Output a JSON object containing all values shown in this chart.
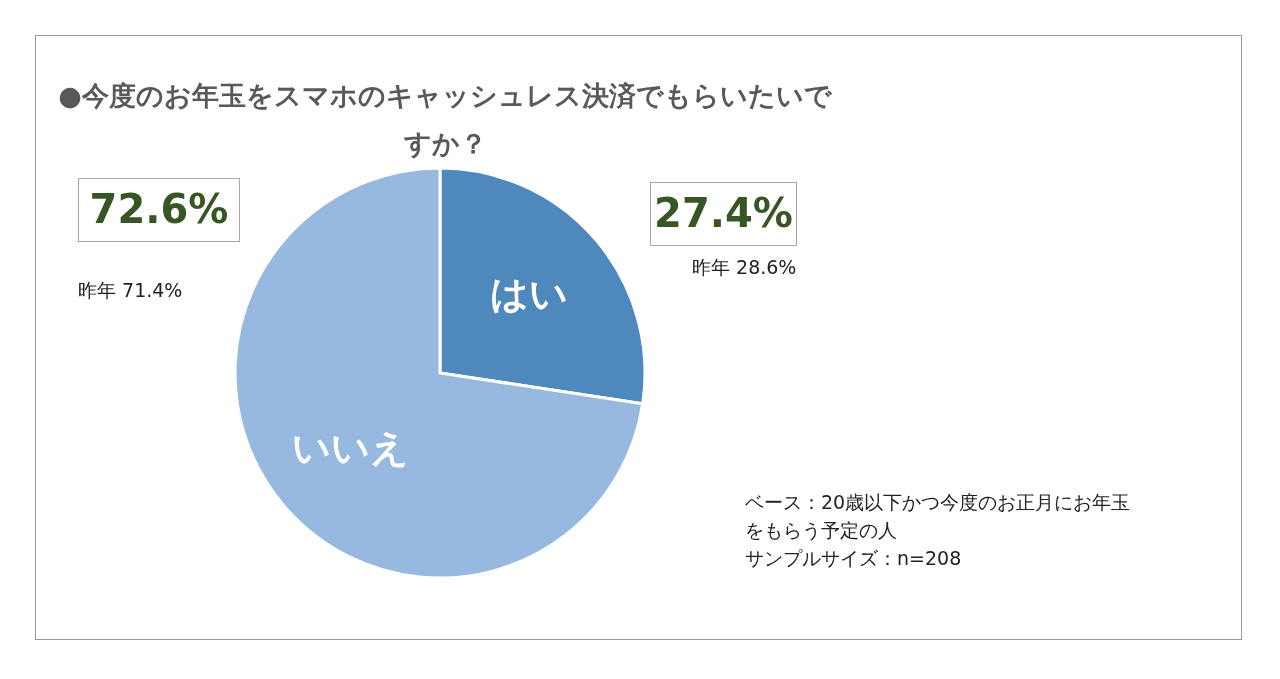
{
  "chart_data": {
    "type": "pie",
    "title": "●今度のお年玉をスマホのキャッシュレス決済でもらいたいですか？",
    "categories": [
      "はい",
      "いいえ"
    ],
    "values": [
      27.4,
      72.6
    ],
    "colors": [
      "#4f88bd",
      "#98b9df"
    ],
    "value_labels": [
      "27.4%",
      "72.6%"
    ],
    "annotations": [
      "昨年 28.6%",
      "昨年 71.4%",
      "ベース：20歳以下かつ今度のお正月にお年玉をもらう予定の人",
      "サンプルサイズ：n=208"
    ]
  }
}
